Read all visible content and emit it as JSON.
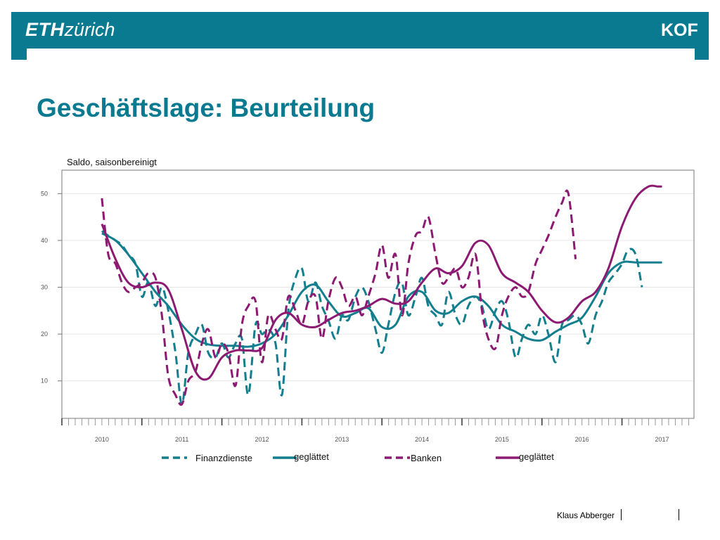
{
  "header": {
    "logo_left_bold": "ETH",
    "logo_left_italic": "zürich",
    "logo_right": "KOF",
    "bar_color": "#0a7a91"
  },
  "slide": {
    "title": "Geschäftslage: Beurteilung",
    "title_color": "#0a7a91"
  },
  "footer": {
    "author": "Klaus Abberger"
  },
  "chart_data": {
    "type": "line",
    "ylabel": "Saldo, saisonbereinigt",
    "ylim": [
      2,
      55
    ],
    "xlim": [
      2009.5,
      2017.4
    ],
    "yticks": [
      10,
      20,
      30,
      40,
      50
    ],
    "xticks": [
      2010,
      2011,
      2012,
      2013,
      2014,
      2015,
      2016,
      2017
    ],
    "grid": "horizontal",
    "legend_position": "bottom",
    "legend": [
      {
        "label": "Finanzdienste",
        "color": "#137e8e",
        "style": "dashed"
      },
      {
        "label": "geglättet",
        "color": "#137e8e",
        "style": "solid"
      },
      {
        "label": "Banken",
        "color": "#8c1a73",
        "style": "dashed"
      },
      {
        "label": "geglättet",
        "color": "#8c1a73",
        "style": "solid"
      }
    ],
    "series": [
      {
        "name": "Finanzdienste",
        "color": "#137e8e",
        "style": "dashed",
        "x": [
          2010.0,
          2010.08,
          2010.17,
          2010.25,
          2010.33,
          2010.42,
          2010.5,
          2010.58,
          2010.67,
          2010.75,
          2010.83,
          2010.92,
          2011.0,
          2011.08,
          2011.17,
          2011.25,
          2011.33,
          2011.42,
          2011.5,
          2011.58,
          2011.67,
          2011.75,
          2011.83,
          2011.92,
          2012.0,
          2012.08,
          2012.17,
          2012.25,
          2012.33,
          2012.42,
          2012.5,
          2012.58,
          2012.67,
          2012.75,
          2012.83,
          2012.92,
          2013.0,
          2013.08,
          2013.17,
          2013.25,
          2013.33,
          2013.42,
          2013.5,
          2013.58,
          2013.67,
          2013.75,
          2013.83,
          2013.92,
          2014.0,
          2014.08,
          2014.17,
          2014.25,
          2014.33,
          2014.42,
          2014.5,
          2014.58,
          2014.67,
          2014.75,
          2014.83,
          2014.92,
          2015.0,
          2015.08,
          2015.17,
          2015.25,
          2015.33,
          2015.42,
          2015.5,
          2015.58,
          2015.67,
          2015.75,
          2015.83,
          2015.92,
          2016.0,
          2016.08,
          2016.17,
          2016.25,
          2016.33,
          2016.42,
          2016.5,
          2016.58,
          2016.67,
          2016.75,
          2016.83,
          2016.92,
          2017.0
        ],
        "values": [
          42,
          41,
          40,
          39,
          37,
          35,
          28,
          31,
          26,
          30,
          25,
          16,
          5,
          16,
          20,
          22,
          16,
          15,
          18,
          15,
          18,
          19,
          7,
          22,
          20,
          21,
          18,
          7,
          25,
          32,
          34,
          27,
          31,
          26,
          23,
          19,
          24,
          23,
          28,
          30,
          27,
          21,
          16,
          22,
          29,
          31,
          24,
          28,
          32,
          26,
          24,
          22,
          29,
          24,
          22,
          26,
          28,
          26,
          21,
          25,
          27,
          23,
          15,
          19,
          22,
          20,
          24,
          20,
          14,
          22,
          23,
          24,
          22,
          18,
          24,
          27,
          31,
          33,
          35,
          38,
          37,
          30,
          null,
          null,
          null
        ]
      },
      {
        "name": "geglättet",
        "color": "#137e8e",
        "style": "solid",
        "x": [
          2010.0,
          2010.17,
          2010.33,
          2010.5,
          2010.67,
          2010.83,
          2011.0,
          2011.17,
          2011.33,
          2011.5,
          2011.67,
          2011.83,
          2012.0,
          2012.17,
          2012.33,
          2012.5,
          2012.67,
          2012.83,
          2013.0,
          2013.17,
          2013.33,
          2013.5,
          2013.67,
          2013.83,
          2014.0,
          2014.17,
          2014.33,
          2014.5,
          2014.67,
          2014.83,
          2015.0,
          2015.17,
          2015.33,
          2015.5,
          2015.67,
          2015.83,
          2016.0,
          2016.17,
          2016.33,
          2016.5,
          2016.67,
          2016.83,
          2016.95,
          2017.0
        ],
        "values": [
          41.5,
          40,
          37,
          33,
          29,
          26,
          22,
          19,
          17.8,
          17.5,
          17.5,
          17.3,
          18,
          20,
          24,
          29,
          30.5,
          27,
          23.8,
          24.5,
          25.5,
          21.5,
          22,
          28,
          29,
          25,
          24.5,
          27,
          28,
          26,
          22,
          20.5,
          19,
          18.7,
          20.5,
          22,
          23.5,
          28,
          33,
          35.3,
          35.3,
          35.3,
          35.3,
          35.3
        ]
      },
      {
        "name": "Banken",
        "color": "#8c1a73",
        "style": "dashed",
        "x": [
          2010.0,
          2010.08,
          2010.17,
          2010.25,
          2010.33,
          2010.42,
          2010.5,
          2010.58,
          2010.67,
          2010.75,
          2010.83,
          2010.92,
          2011.0,
          2011.08,
          2011.17,
          2011.25,
          2011.33,
          2011.42,
          2011.5,
          2011.58,
          2011.67,
          2011.75,
          2011.83,
          2011.92,
          2012.0,
          2012.08,
          2012.17,
          2012.25,
          2012.33,
          2012.42,
          2012.5,
          2012.58,
          2012.67,
          2012.75,
          2012.83,
          2012.92,
          2013.0,
          2013.08,
          2013.17,
          2013.25,
          2013.33,
          2013.42,
          2013.5,
          2013.58,
          2013.67,
          2013.75,
          2013.83,
          2013.92,
          2014.0,
          2014.08,
          2014.17,
          2014.25,
          2014.33,
          2014.42,
          2014.5,
          2014.58,
          2014.67,
          2014.75,
          2014.83,
          2014.92,
          2015.0,
          2015.08,
          2015.17,
          2015.25,
          2015.33,
          2015.42,
          2015.5,
          2015.58,
          2015.67,
          2015.75,
          2015.83,
          2015.92,
          2016.0,
          2016.08,
          2016.17,
          2016.25,
          2016.33,
          2016.42,
          2016.5,
          2016.58,
          2016.67,
          2016.75,
          2016.83,
          2016.92,
          2017.0
        ],
        "values": [
          49,
          37,
          35,
          31,
          29,
          30,
          31,
          33,
          32,
          24,
          11,
          7,
          5,
          10,
          12,
          18,
          21,
          15,
          18,
          16,
          9,
          22,
          26,
          27,
          14,
          24,
          21,
          19,
          28,
          25,
          22,
          27,
          28,
          19,
          27,
          32,
          30,
          26,
          28,
          24,
          28,
          33,
          39,
          32,
          37,
          24,
          35,
          41,
          42,
          45,
          37,
          31,
          32,
          34,
          30,
          32,
          37,
          25,
          19,
          17,
          24,
          28,
          30,
          28,
          29,
          35,
          38,
          41,
          45,
          48,
          50,
          36,
          null,
          null,
          null,
          null,
          null,
          null,
          null,
          null,
          null,
          null,
          null,
          null,
          null
        ]
      },
      {
        "name": "geglättet",
        "color": "#8c1a73",
        "style": "solid",
        "x": [
          2010.0,
          2010.17,
          2010.33,
          2010.5,
          2010.67,
          2010.83,
          2011.0,
          2011.17,
          2011.33,
          2011.5,
          2011.67,
          2011.83,
          2012.0,
          2012.17,
          2012.33,
          2012.5,
          2012.67,
          2012.83,
          2013.0,
          2013.17,
          2013.33,
          2013.5,
          2013.67,
          2013.83,
          2014.0,
          2014.17,
          2014.33,
          2014.5,
          2014.67,
          2014.83,
          2015.0,
          2015.17,
          2015.33,
          2015.5,
          2015.67,
          2015.83,
          2016.0,
          2016.17,
          2016.33,
          2016.5,
          2016.67,
          2016.83,
          2016.95,
          2017.0
        ],
        "values": [
          43.5,
          36,
          31,
          30,
          31,
          29.5,
          21,
          12,
          10.5,
          15,
          16.5,
          16.5,
          17,
          23,
          24.5,
          22,
          21.5,
          23,
          24.5,
          25,
          26,
          27.5,
          26.5,
          27,
          31,
          34,
          33,
          34.5,
          39.5,
          39,
          33,
          31,
          29,
          25,
          22.5,
          23.5,
          27,
          29,
          34,
          43,
          49,
          51.5,
          51.5,
          51.5
        ]
      }
    ]
  }
}
